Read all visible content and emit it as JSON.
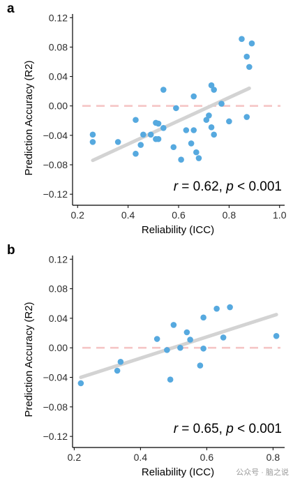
{
  "watermark": "公众号 · 脑之说",
  "chart_data": [
    {
      "type": "scatter",
      "panel": "a",
      "xlabel": "Reliability (ICC)",
      "ylabel": "Prediction Accuracy (R2)",
      "xlim": [
        0.18,
        1.02
      ],
      "ylim": [
        -0.135,
        0.125
      ],
      "xticks": [
        0.2,
        0.4,
        0.6,
        0.8,
        1.0
      ],
      "xtick_labels": [
        "0.2",
        "0.4",
        "0.6",
        "0.8",
        "1.0"
      ],
      "yticks": [
        0.12,
        0.08,
        0.04,
        0.0,
        -0.04,
        -0.08,
        -0.12
      ],
      "ytick_labels": [
        "0.12",
        "0.08",
        "0.04",
        "0.00",
        "−0.04",
        "−0.08",
        "−0.12"
      ],
      "reference_line_y": 0.0,
      "fit_line": {
        "x": [
          0.26,
          0.88
        ],
        "y": [
          -0.074,
          0.024
        ]
      },
      "annotation": {
        "r_sym": "r",
        "r_text": " = 0.62, ",
        "p_sym": "p",
        "p_text": " < 0.001"
      },
      "points": [
        {
          "x": 0.26,
          "y": -0.039
        },
        {
          "x": 0.26,
          "y": -0.049
        },
        {
          "x": 0.36,
          "y": -0.049
        },
        {
          "x": 0.43,
          "y": -0.019
        },
        {
          "x": 0.43,
          "y": -0.065
        },
        {
          "x": 0.45,
          "y": -0.053
        },
        {
          "x": 0.46,
          "y": -0.039
        },
        {
          "x": 0.49,
          "y": -0.039
        },
        {
          "x": 0.51,
          "y": -0.023
        },
        {
          "x": 0.51,
          "y": -0.045
        },
        {
          "x": 0.52,
          "y": -0.024
        },
        {
          "x": 0.52,
          "y": -0.045
        },
        {
          "x": 0.54,
          "y": 0.022
        },
        {
          "x": 0.54,
          "y": -0.03
        },
        {
          "x": 0.58,
          "y": -0.056
        },
        {
          "x": 0.59,
          "y": -0.003
        },
        {
          "x": 0.61,
          "y": -0.073
        },
        {
          "x": 0.63,
          "y": -0.033
        },
        {
          "x": 0.65,
          "y": -0.051
        },
        {
          "x": 0.66,
          "y": -0.033
        },
        {
          "x": 0.66,
          "y": 0.013
        },
        {
          "x": 0.67,
          "y": -0.063
        },
        {
          "x": 0.68,
          "y": -0.071
        },
        {
          "x": 0.71,
          "y": -0.019
        },
        {
          "x": 0.72,
          "y": -0.013
        },
        {
          "x": 0.73,
          "y": -0.029
        },
        {
          "x": 0.74,
          "y": -0.039
        },
        {
          "x": 0.73,
          "y": 0.028
        },
        {
          "x": 0.74,
          "y": 0.022
        },
        {
          "x": 0.77,
          "y": 0.003
        },
        {
          "x": 0.8,
          "y": -0.021
        },
        {
          "x": 0.85,
          "y": 0.091
        },
        {
          "x": 0.87,
          "y": 0.067
        },
        {
          "x": 0.88,
          "y": 0.053
        },
        {
          "x": 0.89,
          "y": 0.085
        },
        {
          "x": 0.87,
          "y": -0.015
        }
      ]
    },
    {
      "type": "scatter",
      "panel": "b",
      "xlabel": "Reliability (ICC)",
      "ylabel": "Prediction Accuracy (R2)",
      "xlim": [
        0.195,
        0.835
      ],
      "ylim": [
        -0.135,
        0.125
      ],
      "xticks": [
        0.2,
        0.4,
        0.6,
        0.8
      ],
      "xtick_labels": [
        "0.2",
        "0.4",
        "0.6",
        "0.8"
      ],
      "yticks": [
        0.12,
        0.08,
        0.04,
        0.0,
        -0.04,
        -0.08,
        -0.12
      ],
      "ytick_labels": [
        "0.12",
        "0.08",
        "0.04",
        "0.00",
        "−0.04",
        "−0.08",
        "−0.12"
      ],
      "reference_line_y": 0.0,
      "fit_line": {
        "x": [
          0.22,
          0.81
        ],
        "y": [
          -0.04,
          0.045
        ]
      },
      "annotation": {
        "r_sym": "r",
        "r_text": " = 0.65, ",
        "p_sym": "p",
        "p_text": " < 0.001"
      },
      "points": [
        {
          "x": 0.22,
          "y": -0.048
        },
        {
          "x": 0.33,
          "y": -0.031
        },
        {
          "x": 0.34,
          "y": -0.019
        },
        {
          "x": 0.45,
          "y": 0.012
        },
        {
          "x": 0.48,
          "y": -0.003
        },
        {
          "x": 0.49,
          "y": -0.043
        },
        {
          "x": 0.5,
          "y": 0.031
        },
        {
          "x": 0.52,
          "y": 0.0
        },
        {
          "x": 0.54,
          "y": 0.021
        },
        {
          "x": 0.55,
          "y": 0.011
        },
        {
          "x": 0.58,
          "y": -0.024
        },
        {
          "x": 0.59,
          "y": 0.041
        },
        {
          "x": 0.59,
          "y": -0.001
        },
        {
          "x": 0.63,
          "y": 0.053
        },
        {
          "x": 0.65,
          "y": 0.014
        },
        {
          "x": 0.67,
          "y": 0.055
        },
        {
          "x": 0.81,
          "y": 0.016
        }
      ]
    }
  ]
}
